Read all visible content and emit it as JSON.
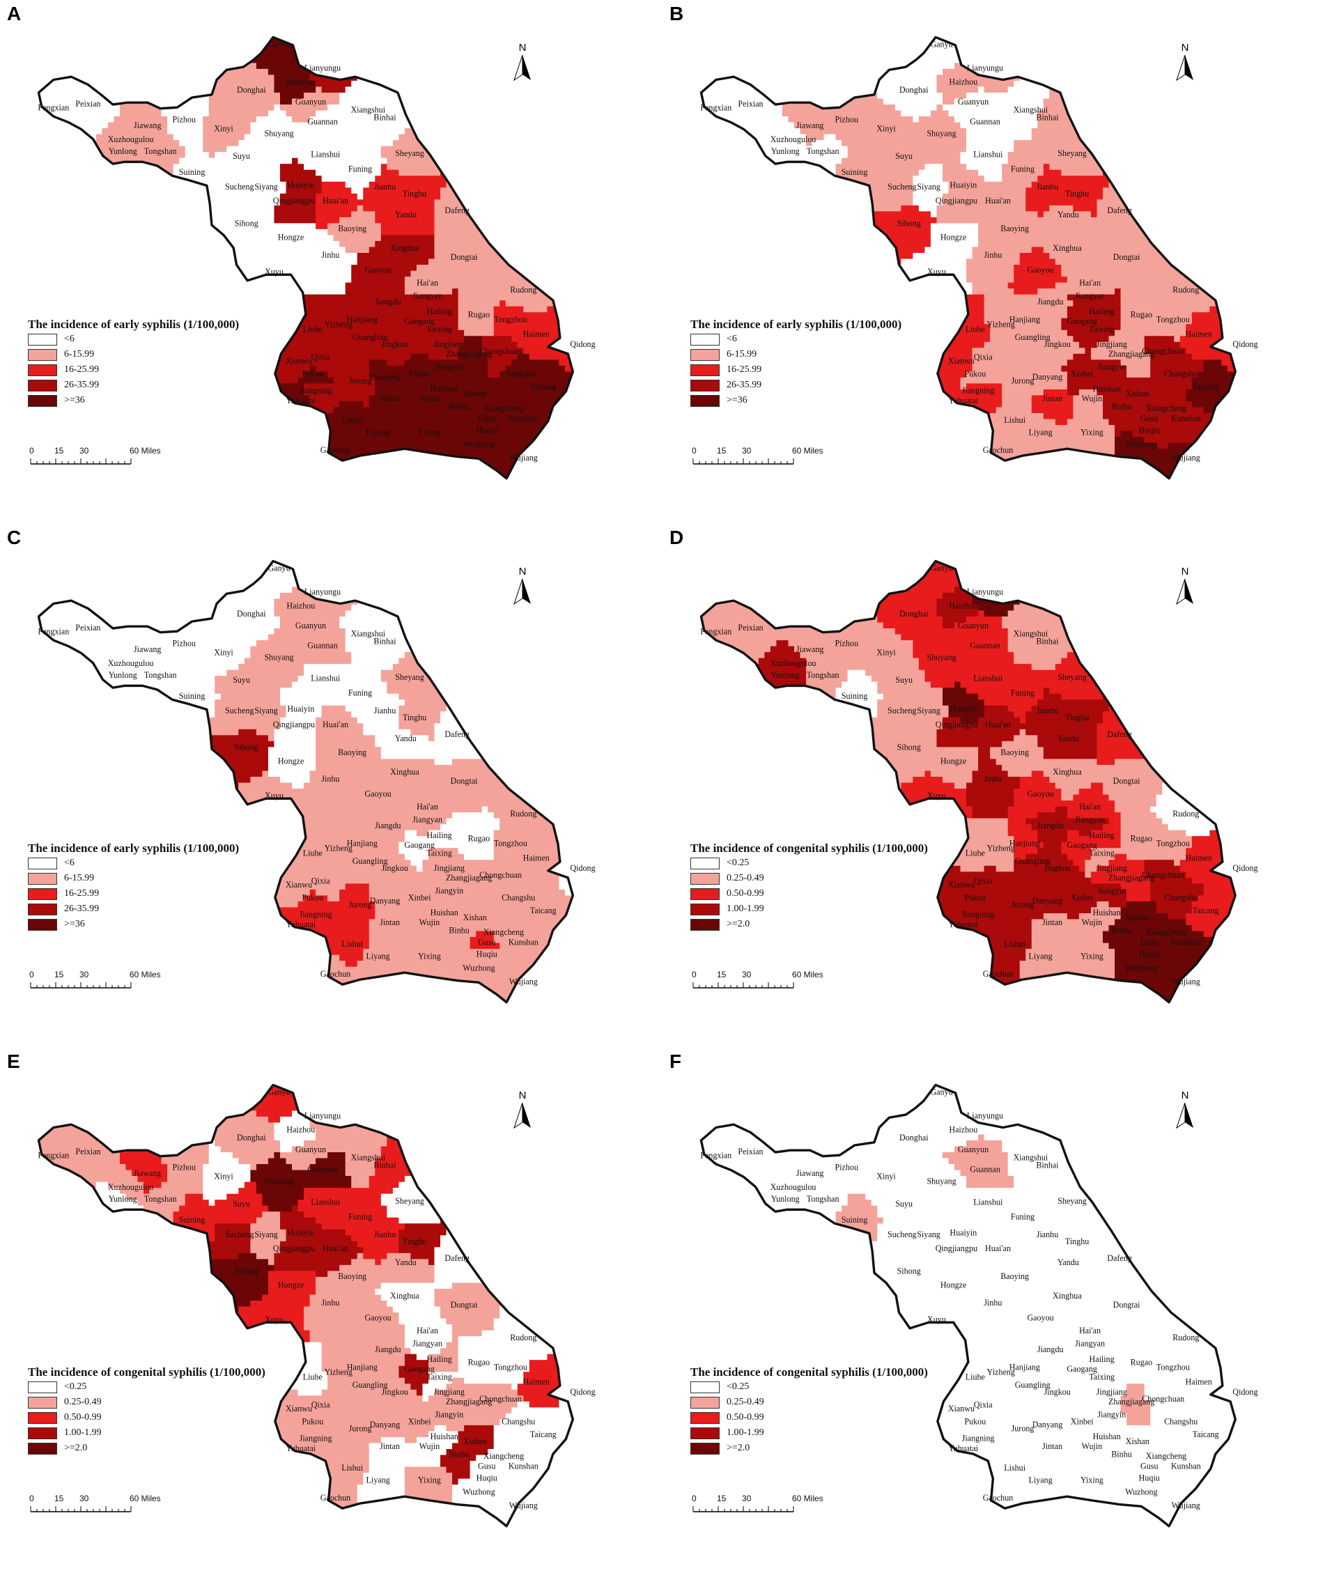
{
  "panels": [
    {
      "letter": "A",
      "legend_title": "The incidence of early syphilis (1/100,000)",
      "scheme": "early"
    },
    {
      "letter": "B",
      "legend_title": "The incidence of early syphilis (1/100,000)",
      "scheme": "early"
    },
    {
      "letter": "C",
      "legend_title": "The incidence of early syphilis (1/100,000)",
      "scheme": "early"
    },
    {
      "letter": "D",
      "legend_title": "The incidence of congenital syphilis (1/100,000)",
      "scheme": "congenital"
    },
    {
      "letter": "E",
      "legend_title": "The incidence of congenital syphilis (1/100,000)",
      "scheme": "congenital"
    },
    {
      "letter": "F",
      "legend_title": "The incidence of congenital syphilis (1/100,000)",
      "scheme": "congenital"
    }
  ],
  "legend_classes": {
    "early": [
      "<6",
      "6-15.99",
      "16-25.99",
      "26-35.99",
      ">=36"
    ],
    "congenital": [
      "<0.25",
      "0.25-0.49",
      "0.50-0.99",
      "1.00-1.99",
      ">=2.0"
    ]
  },
  "class_colors": [
    "#ffffff",
    "#f4a39a",
    "#e81c1c",
    "#aa0a0a",
    "#6b0606"
  ],
  "north_label": "N",
  "scale": {
    "ticks": [
      "0",
      "15",
      "30",
      "60 Miles"
    ]
  },
  "place_names": [
    "Ganyu",
    "Lianyungu",
    "Haizhou",
    "Donghai",
    "Guanyun",
    "Guannan",
    "Xiangshui",
    "Binhai",
    "Fengxian",
    "Peixian",
    "Jiawang",
    "Pizhou",
    "Xinyi",
    "Shuyang",
    "Xuzhougulou",
    "Yunlong",
    "Tongshan",
    "Suining",
    "Suyu",
    "Lianshui",
    "Funing",
    "Sheyang",
    "Sucheng",
    "Siyang",
    "Huaiyin",
    "Qingjiangpu",
    "Huai'an",
    "Jianhu",
    "Tinghu",
    "Sihong",
    "Hongze",
    "Xuyu",
    "Jinhu",
    "Baoying",
    "Yandu",
    "Dafeng",
    "Xinghua",
    "Gaoyou",
    "Dongtai",
    "Hai'an",
    "Rudong",
    "Jiangdu",
    "Jiangyan",
    "Hailing",
    "Gaogang",
    "Taixing",
    "Rugao",
    "Tongzhou",
    "Haimen",
    "Qidong",
    "Liuhe",
    "Yizheng",
    "Hanjiang",
    "Guangling",
    "Jingkou",
    "Jingjiang",
    "Zhangjiagang",
    "Chongchuan",
    "Changshu",
    "Taicang",
    "Danyang",
    "Xinbei",
    "Jiangyin",
    "Huishan",
    "Jurong",
    "Jiangning",
    "Pukou",
    "Xianwu",
    "Qixia",
    "Yuhuatai",
    "Lishui",
    "Jintan",
    "Wujin",
    "Liyang",
    "Yixing",
    "Binhu",
    "Xishan",
    "Xiangcheng",
    "Kunshan",
    "Gusu",
    "Huqiu",
    "Wuzhong",
    "Wujiang",
    "Gaochun"
  ],
  "panel_values": {
    "A": [
      4,
      3,
      4,
      1,
      1,
      0,
      0,
      0,
      0,
      0,
      1,
      0,
      1,
      0,
      1,
      1,
      1,
      0,
      0,
      0,
      0,
      1,
      0,
      0,
      3,
      3,
      2,
      2,
      2,
      0,
      0,
      0,
      0,
      1,
      2,
      1,
      3,
      3,
      1,
      1,
      1,
      3,
      3,
      3,
      3,
      3,
      1,
      2,
      2,
      2,
      3,
      3,
      3,
      3,
      3,
      3,
      4,
      3,
      4,
      4,
      4,
      4,
      4,
      4,
      3,
      3,
      4,
      3,
      3,
      4,
      4,
      4,
      4,
      4,
      4,
      4,
      4,
      4,
      4,
      4,
      4,
      4,
      4,
      4
    ],
    "B": [
      0,
      1,
      1,
      0,
      0,
      0,
      0,
      1,
      0,
      0,
      1,
      1,
      1,
      1,
      0,
      0,
      0,
      1,
      1,
      0,
      1,
      1,
      1,
      0,
      1,
      1,
      1,
      2,
      2,
      2,
      0,
      0,
      1,
      1,
      1,
      1,
      1,
      2,
      1,
      1,
      1,
      1,
      3,
      3,
      3,
      3,
      1,
      1,
      2,
      2,
      2,
      1,
      1,
      1,
      1,
      1,
      1,
      3,
      3,
      4,
      1,
      3,
      3,
      3,
      1,
      2,
      1,
      2,
      1,
      2,
      1,
      2,
      1,
      1,
      1,
      3,
      3,
      3,
      3,
      3,
      3,
      4,
      4,
      1
    ],
    "C": [
      0,
      1,
      1,
      0,
      1,
      1,
      0,
      0,
      0,
      0,
      0,
      0,
      0,
      1,
      0,
      0,
      0,
      0,
      1,
      0,
      0,
      1,
      1,
      1,
      0,
      0,
      1,
      0,
      1,
      3,
      0,
      1,
      1,
      1,
      0,
      0,
      1,
      1,
      1,
      1,
      1,
      1,
      1,
      0,
      0,
      1,
      0,
      1,
      1,
      0,
      1,
      1,
      1,
      1,
      1,
      1,
      1,
      1,
      1,
      1,
      1,
      1,
      1,
      1,
      2,
      2,
      2,
      1,
      1,
      2,
      2,
      1,
      1,
      1,
      1,
      1,
      1,
      1,
      1,
      2,
      1,
      1,
      1,
      1
    ],
    "D": [
      2,
      4,
      3,
      2,
      2,
      2,
      1,
      1,
      1,
      1,
      1,
      1,
      1,
      2,
      3,
      3,
      1,
      0,
      1,
      2,
      2,
      2,
      1,
      1,
      4,
      3,
      3,
      3,
      3,
      1,
      1,
      2,
      3,
      1,
      3,
      2,
      1,
      2,
      1,
      2,
      0,
      3,
      3,
      2,
      2,
      1,
      1,
      1,
      2,
      2,
      1,
      1,
      2,
      3,
      3,
      2,
      2,
      3,
      3,
      2,
      3,
      3,
      3,
      1,
      3,
      3,
      3,
      3,
      3,
      3,
      3,
      1,
      1,
      1,
      1,
      4,
      4,
      4,
      4,
      4,
      4,
      4,
      4,
      3
    ],
    "E": [
      2,
      1,
      0,
      1,
      1,
      4,
      1,
      2,
      1,
      1,
      2,
      1,
      0,
      4,
      1,
      0,
      1,
      2,
      2,
      2,
      2,
      0,
      3,
      1,
      3,
      3,
      3,
      2,
      3,
      4,
      2,
      2,
      1,
      1,
      1,
      0,
      0,
      1,
      1,
      0,
      0,
      1,
      0,
      1,
      3,
      0,
      0,
      0,
      2,
      0,
      0,
      1,
      1,
      1,
      1,
      1,
      1,
      1,
      0,
      0,
      1,
      1,
      1,
      0,
      1,
      1,
      1,
      1,
      1,
      1,
      1,
      0,
      0,
      0,
      1,
      3,
      3,
      0,
      0,
      0,
      0,
      0,
      0,
      1
    ],
    "F": [
      0,
      0,
      0,
      0,
      1,
      1,
      0,
      0,
      0,
      0,
      0,
      0,
      0,
      0,
      0,
      0,
      0,
      1,
      0,
      0,
      0,
      0,
      0,
      0,
      0,
      0,
      0,
      0,
      0,
      0,
      0,
      0,
      0,
      0,
      0,
      0,
      0,
      0,
      0,
      0,
      0,
      0,
      0,
      0,
      0,
      0,
      0,
      0,
      0,
      0,
      0,
      0,
      0,
      0,
      0,
      0,
      1,
      0,
      0,
      0,
      0,
      0,
      0,
      0,
      0,
      0,
      0,
      0,
      0,
      0,
      0,
      0,
      0,
      0,
      0,
      0,
      0,
      0,
      0,
      0,
      0,
      0,
      0,
      0
    ]
  }
}
